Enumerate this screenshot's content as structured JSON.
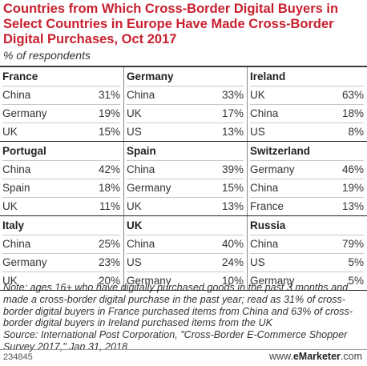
{
  "header": {
    "title": "Countries from Which Cross-Border Digital Buyers in Select Countries in Europe Have Made Cross-Border Digital Purchases, Oct 2017",
    "subtitle": "% of respondents"
  },
  "chart_data": {
    "type": "table",
    "columns_per_row": 3,
    "countries": [
      {
        "name": "France",
        "rows": [
          {
            "label": "China",
            "value": "31%"
          },
          {
            "label": "Germany",
            "value": "19%"
          },
          {
            "label": "UK",
            "value": "15%"
          }
        ]
      },
      {
        "name": "Germany",
        "rows": [
          {
            "label": "China",
            "value": "33%"
          },
          {
            "label": "UK",
            "value": "17%"
          },
          {
            "label": "US",
            "value": "13%"
          }
        ]
      },
      {
        "name": "Ireland",
        "rows": [
          {
            "label": "UK",
            "value": "63%"
          },
          {
            "label": "China",
            "value": "18%"
          },
          {
            "label": "US",
            "value": "8%"
          }
        ]
      },
      {
        "name": "Portugal",
        "rows": [
          {
            "label": "China",
            "value": "42%"
          },
          {
            "label": "Spain",
            "value": "18%"
          },
          {
            "label": "UK",
            "value": "11%"
          }
        ]
      },
      {
        "name": "Spain",
        "rows": [
          {
            "label": "China",
            "value": "39%"
          },
          {
            "label": "Germany",
            "value": "15%"
          },
          {
            "label": "UK",
            "value": "13%"
          }
        ]
      },
      {
        "name": "Switzerland",
        "rows": [
          {
            "label": "Germany",
            "value": "46%"
          },
          {
            "label": "China",
            "value": "19%"
          },
          {
            "label": "France",
            "value": "13%"
          }
        ]
      },
      {
        "name": "Italy",
        "rows": [
          {
            "label": "China",
            "value": "25%"
          },
          {
            "label": "Germany",
            "value": "23%"
          },
          {
            "label": "UK",
            "value": "20%"
          }
        ]
      },
      {
        "name": "UK",
        "rows": [
          {
            "label": "China",
            "value": "40%"
          },
          {
            "label": "US",
            "value": "24%"
          },
          {
            "label": "Germany",
            "value": "10%"
          }
        ]
      },
      {
        "name": "Russia",
        "rows": [
          {
            "label": "China",
            "value": "79%"
          },
          {
            "label": "US",
            "value": "5%"
          },
          {
            "label": "Germany",
            "value": "5%"
          }
        ]
      }
    ]
  },
  "notes": {
    "note": "Note: ages 16+ who have digitally purchased goods in the past 3 months and made a cross-border digital purchase in the past year; read as 31% of cross-border digital buyers in France purchased items from China and 63% of cross-border digital buyers in Ireland purchased items from the UK",
    "source": "Source: International Post Corporation, \"Cross-Border E-Commerce Shopper Survey 2017,\" Jan 31, 2018"
  },
  "footer": {
    "code": "234845",
    "brand_prefix": "www.",
    "brand_name": "eMarketer",
    "brand_suffix": ".com"
  },
  "colors": {
    "title": "#c8202f",
    "text": "#333333",
    "rule": "#222222"
  }
}
